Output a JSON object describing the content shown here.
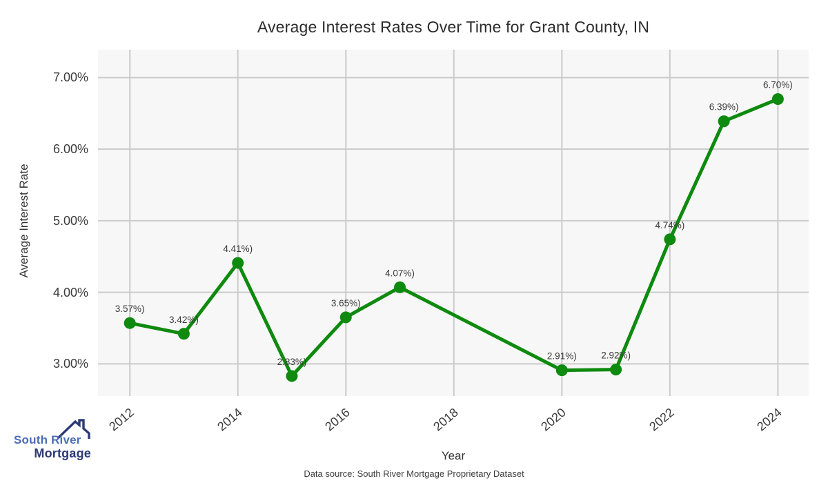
{
  "title": "Average Interest Rates Over Time for Grant County, IN",
  "chart_data": {
    "type": "line",
    "x": [
      2012,
      2013,
      2014,
      2015,
      2016,
      2017,
      2020,
      2021,
      2022,
      2023,
      2024
    ],
    "values": [
      3.57,
      3.42,
      4.41,
      2.83,
      3.65,
      4.07,
      2.91,
      2.92,
      4.74,
      6.39,
      6.7
    ],
    "point_labels": [
      "3.57%)",
      "3.42%)",
      "4.41%)",
      "2.83%)",
      "3.65%)",
      "4.07%)",
      "2.91%)",
      "2.92%)",
      "4.74%)",
      "6.39%)",
      "6.70%)"
    ],
    "title": "Average Interest Rates Over Time for Grant County, IN",
    "xlabel": "Year",
    "ylabel": "Average Interest Rate",
    "xlim": [
      2011.41,
      2024.57
    ],
    "ylim": [
      2.55,
      7.39
    ],
    "x_ticks": [
      2012,
      2014,
      2016,
      2018,
      2020,
      2022,
      2024
    ],
    "x_tick_labels": [
      "2012",
      "2014",
      "2016",
      "2018",
      "2020",
      "2022",
      "2024"
    ],
    "y_ticks": [
      3,
      4,
      5,
      6,
      7
    ],
    "y_tick_labels": [
      "3.00%",
      "4.00%",
      "5.00%",
      "6.00%",
      "7.00%"
    ],
    "grid": true,
    "legend": "none",
    "line_color": "#0e8a0e",
    "marker_color": "#0e8a0e"
  },
  "footer": {
    "data_source": "Data source: South River Mortgage Proprietary Dataset"
  },
  "logo": {
    "name": "South River Mortgage",
    "line1": "South River",
    "line2": "Mortgage",
    "icon": "house-roof-icon"
  },
  "colors": {
    "line": "#0e8a0e",
    "plot_background": "#f7f7f7",
    "gridline": "#cbcbcb",
    "title_text": "#2b2b2b",
    "tick_text": "#3c3c3c",
    "point_label_text": "#3a3a3a",
    "logo_primary": "#4a6db8",
    "logo_secondary": "#2d3a77",
    "footer_text": "#3c3c3c"
  }
}
